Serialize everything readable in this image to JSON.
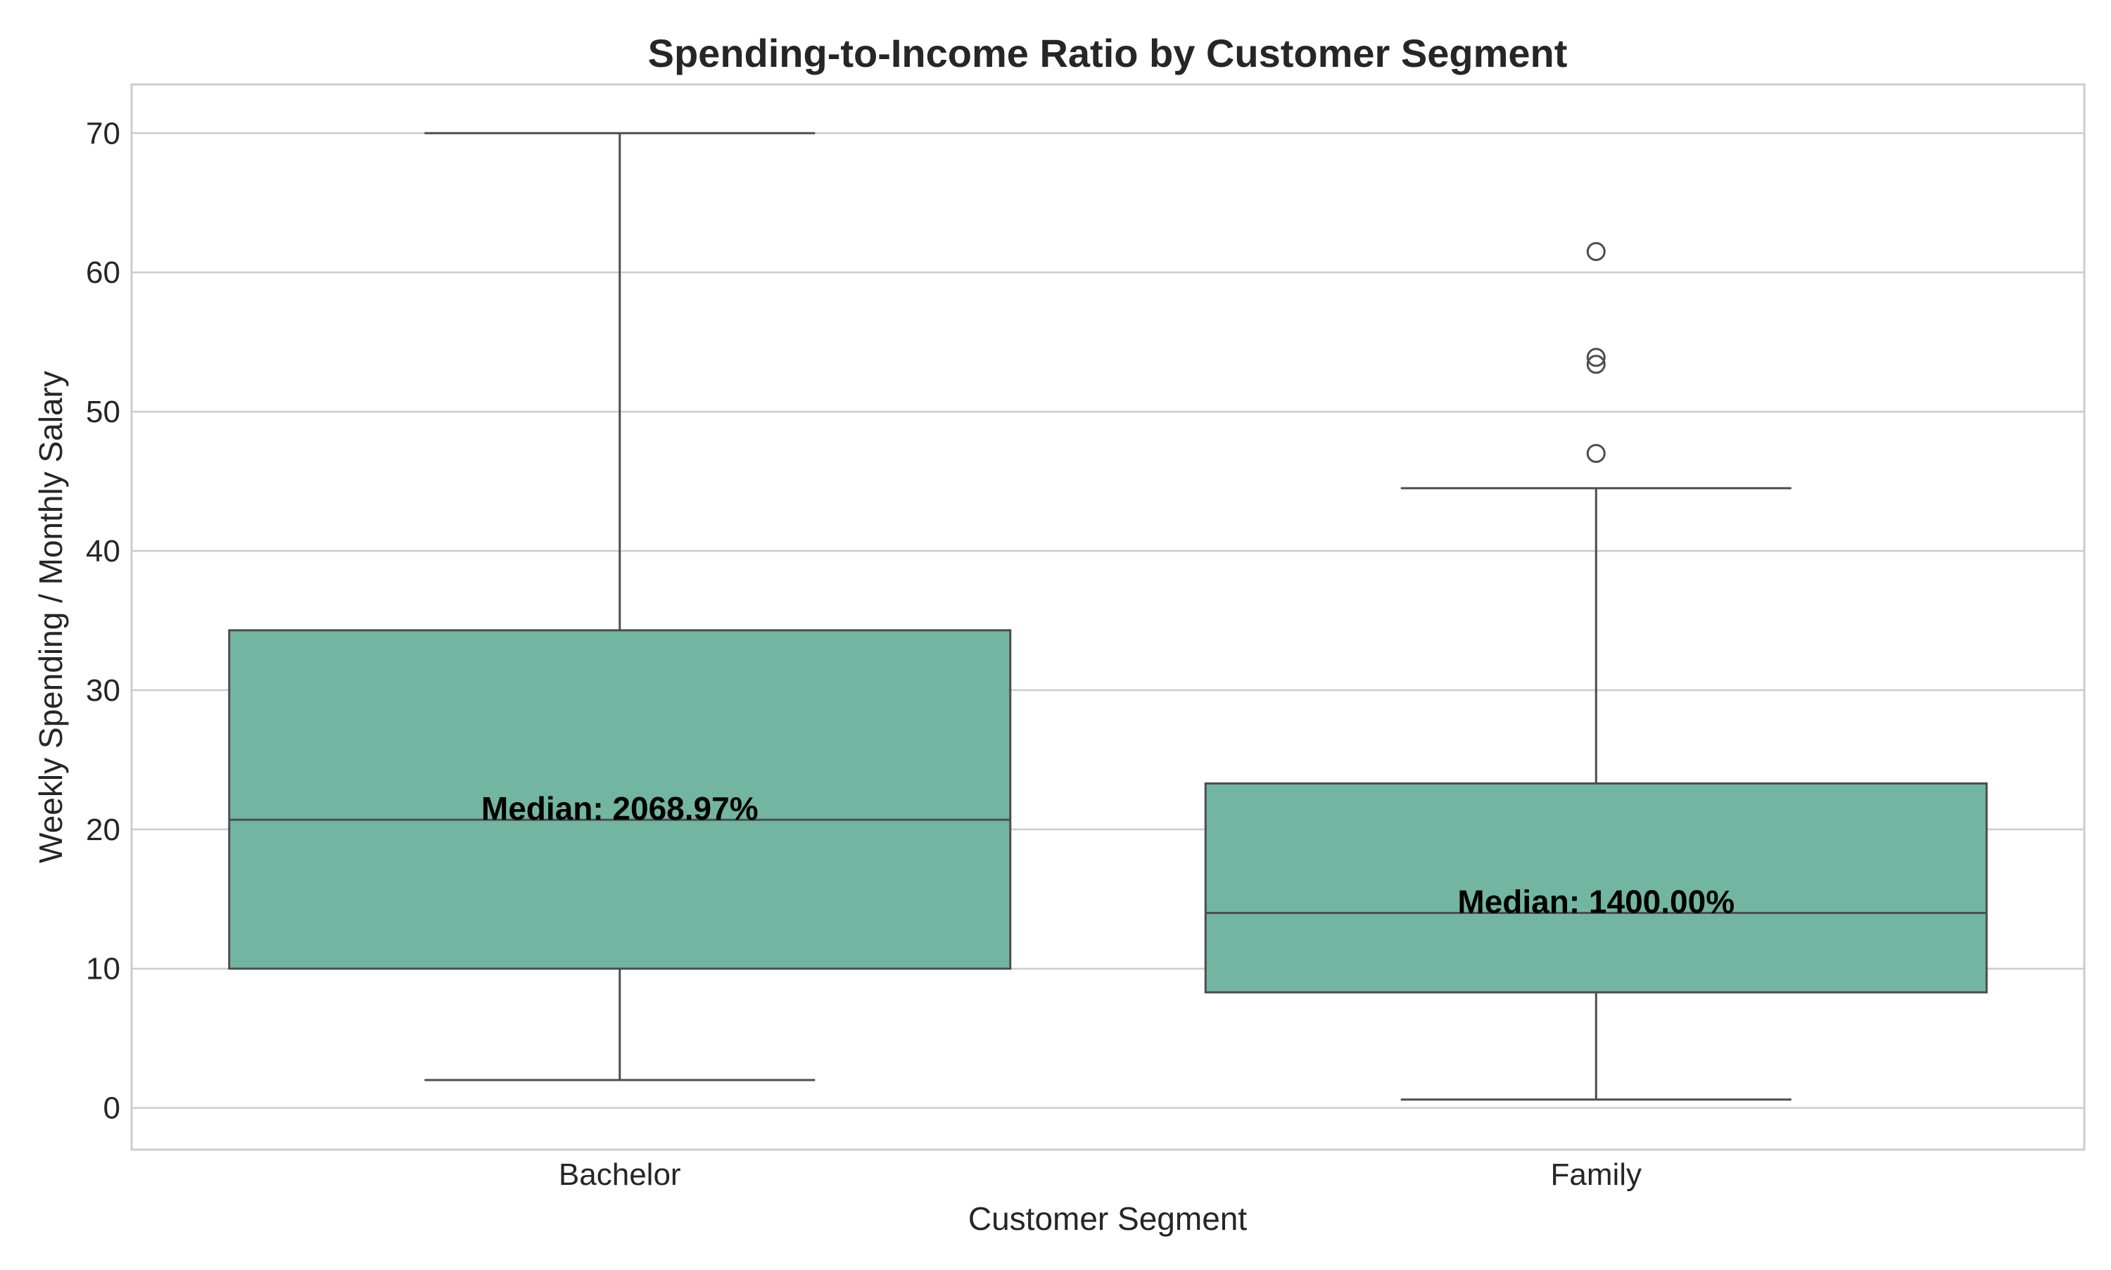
{
  "chart_data": {
    "type": "box",
    "title": "Spending-to-Income Ratio by Customer Segment",
    "xlabel": "Customer Segment",
    "ylabel": "Weekly Spending / Monthly Salary",
    "ylim": [
      -3,
      73.5
    ],
    "yticks": [
      0,
      10,
      20,
      30,
      40,
      50,
      60,
      70
    ],
    "grid": true,
    "box_color": "#72b6a1",
    "line_color": "#4d4d4d",
    "categories": [
      "Bachelor",
      "Family"
    ],
    "boxes": [
      {
        "category": "Bachelor",
        "whisker_low": 2.0,
        "q1": 10.0,
        "median": 20.69,
        "q3": 34.3,
        "whisker_high": 70.0,
        "outliers": [],
        "median_label": "Median: 2068.97%"
      },
      {
        "category": "Family",
        "whisker_low": 0.6,
        "q1": 8.3,
        "median": 14.0,
        "q3": 23.3,
        "whisker_high": 44.5,
        "outliers": [
          47.0,
          53.4,
          53.9,
          61.5
        ],
        "median_label": "Median: 1400.00%"
      }
    ]
  }
}
